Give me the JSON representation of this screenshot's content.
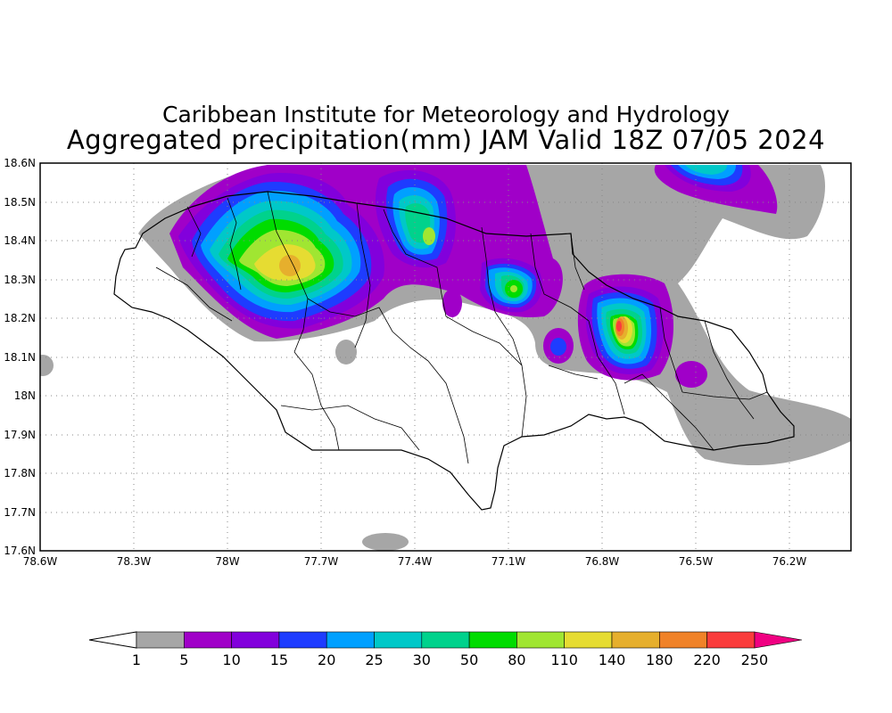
{
  "header": {
    "institute": "Caribbean Institute for Meteorology and Hydrology",
    "product": "Aggregated precipitation(mm) JAM Valid 18Z 07/05 2024"
  },
  "axes": {
    "lat_ticks": [
      "18.6N",
      "18.5N",
      "18.4N",
      "18.3N",
      "18.2N",
      "18.1N",
      "18N",
      "17.9N",
      "17.8N",
      "17.7N",
      "17.6N"
    ],
    "lon_ticks": [
      "78.6W",
      "78.3W",
      "78W",
      "77.7W",
      "77.4W",
      "77.1W",
      "76.8W",
      "76.5W",
      "76.2W"
    ],
    "grid": "dotted"
  },
  "colorbar": {
    "labels": [
      "1",
      "5",
      "10",
      "15",
      "20",
      "25",
      "30",
      "50",
      "80",
      "110",
      "140",
      "180",
      "220",
      "250"
    ],
    "colors": [
      "#a6a6a6",
      "#a000c8",
      "#8200dc",
      "#1e3cff",
      "#00a0ff",
      "#00c8c8",
      "#00d28c",
      "#00dc00",
      "#a0e632",
      "#e6dc32",
      "#e6af2d",
      "#f08228",
      "#fa3c3c"
    ],
    "under_color": "#ffffff",
    "over_color": "#f00082"
  }
}
